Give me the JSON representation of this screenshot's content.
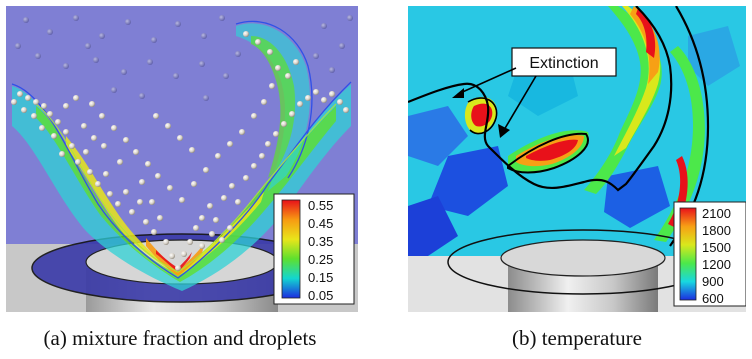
{
  "figures": [
    {
      "caption": "(a) mixture fraction and droplets",
      "colorbar": {
        "labels": [
          "0.55",
          "0.45",
          "0.35",
          "0.25",
          "0.15",
          "0.05"
        ],
        "colors": [
          "#e8111a",
          "#f79a12",
          "#e9e51a",
          "#5ee02e",
          "#13d6d0",
          "#1c2de0"
        ]
      },
      "background_color": "#7f7fd4"
    },
    {
      "caption": "(b) temperature",
      "annotation": "Extinction",
      "colorbar": {
        "labels": [
          "2100",
          "1800",
          "1500",
          "1200",
          "900",
          "600"
        ],
        "colors": [
          "#e8111a",
          "#f7a015",
          "#d9e81c",
          "#4ce84a",
          "#18d8e0",
          "#1c2de0"
        ]
      },
      "background_color": "#29c8e4"
    }
  ]
}
